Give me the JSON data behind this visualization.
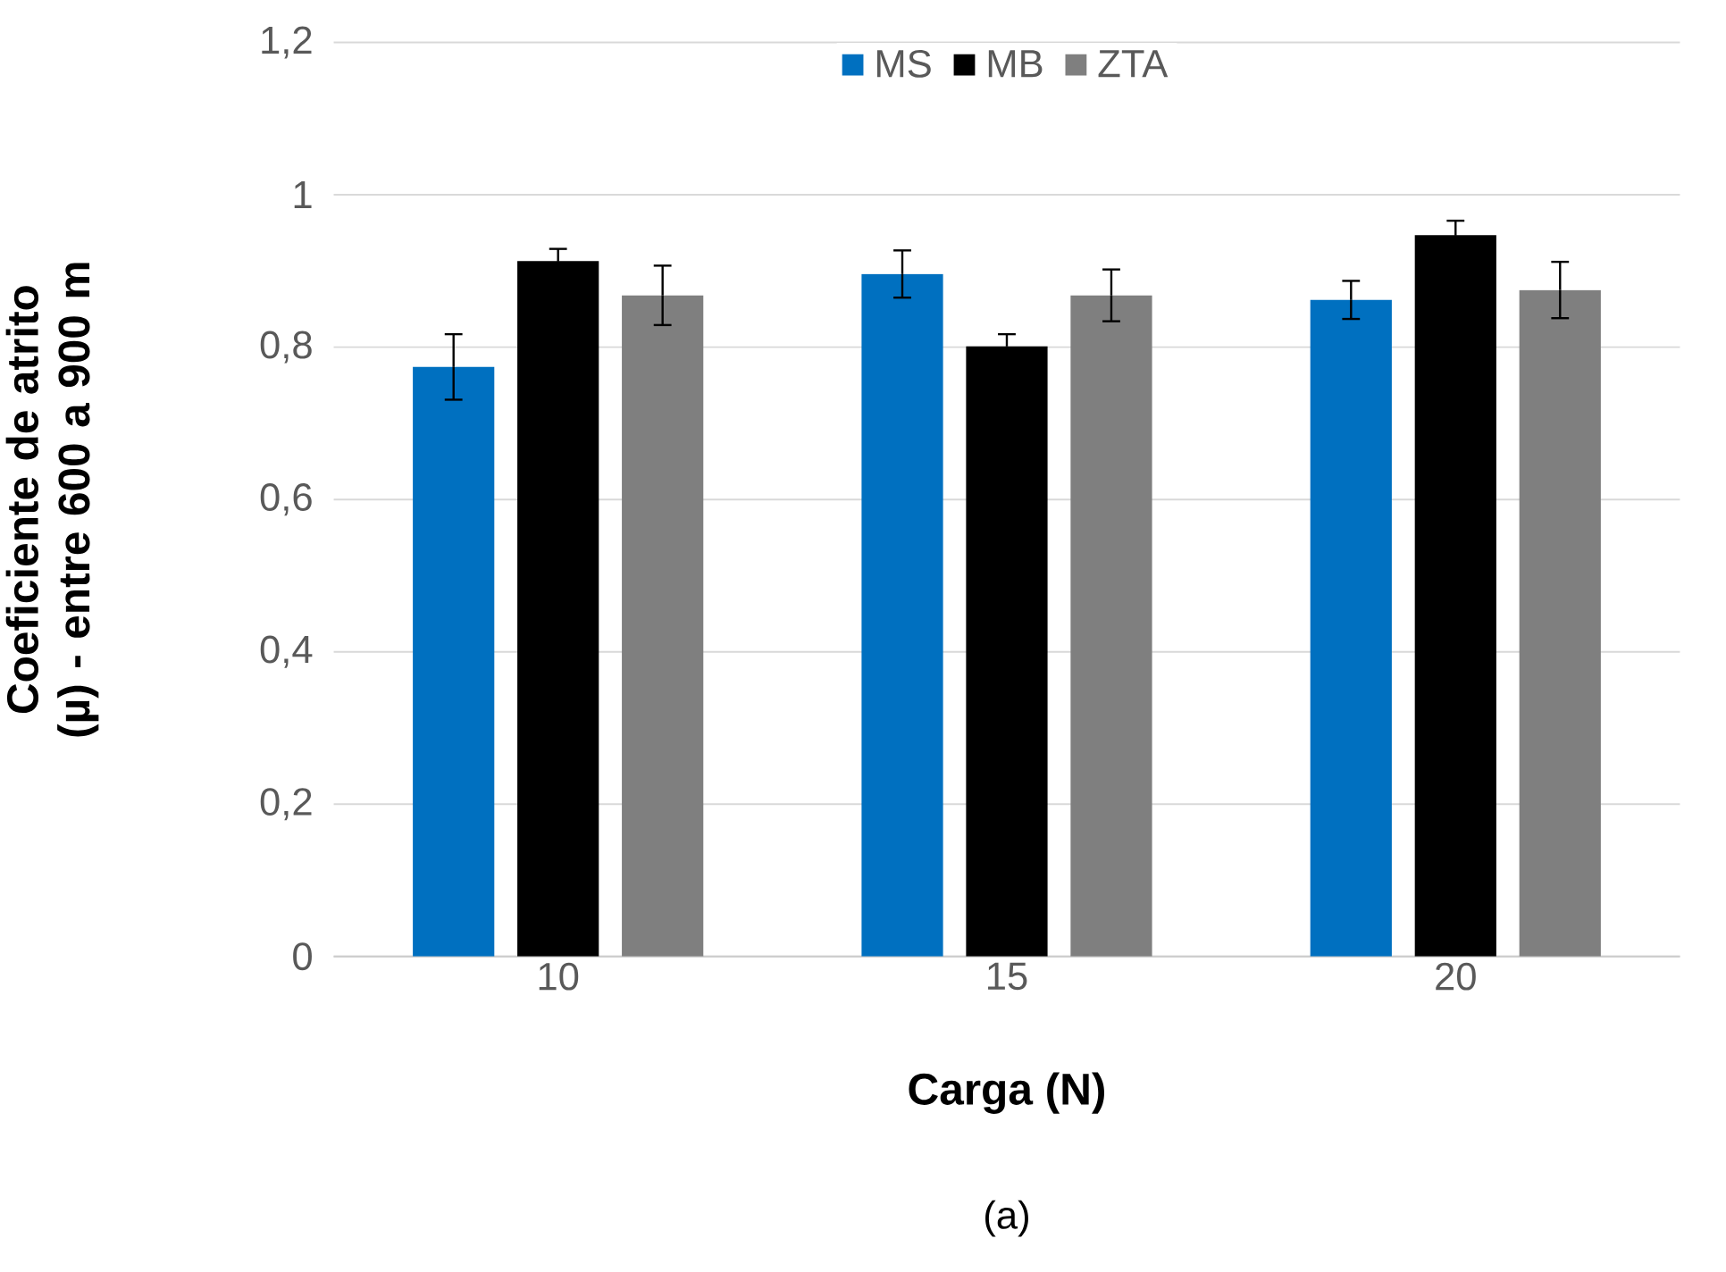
{
  "chart_data": {
    "type": "bar",
    "categories": [
      "10",
      "15",
      "20"
    ],
    "xlabel": "Carga (N)",
    "ylabel": "Coeficiente de atrito (µ) - entre 600 a 900 m",
    "series": [
      {
        "name": "MS",
        "color": "#0070c0",
        "values": [
          0.774,
          0.896,
          0.862
        ],
        "errors": [
          0.043,
          0.031,
          0.025
        ]
      },
      {
        "name": "MB",
        "color": "#000000",
        "values": [
          0.913,
          0.801,
          0.947
        ],
        "errors": [
          0.016,
          0.016,
          0.019
        ]
      },
      {
        "name": "ZTA",
        "color": "#7f7f7f",
        "values": [
          0.868,
          0.868,
          0.875
        ],
        "errors": [
          0.039,
          0.034,
          0.037
        ]
      }
    ],
    "ylim": [
      0,
      1.2
    ],
    "yticks": [
      0,
      {
        "value": 0.2,
        "label": "0,2"
      },
      {
        "value": 0.4,
        "label": "0,4"
      },
      {
        "value": 0.6,
        "label": "0,6"
      },
      {
        "value": 0.8,
        "label": "0,8"
      },
      1,
      {
        "value": 1.2,
        "label": "1,2"
      }
    ],
    "grid": "y",
    "legend": "top",
    "annotations": [
      "(a)"
    ]
  }
}
